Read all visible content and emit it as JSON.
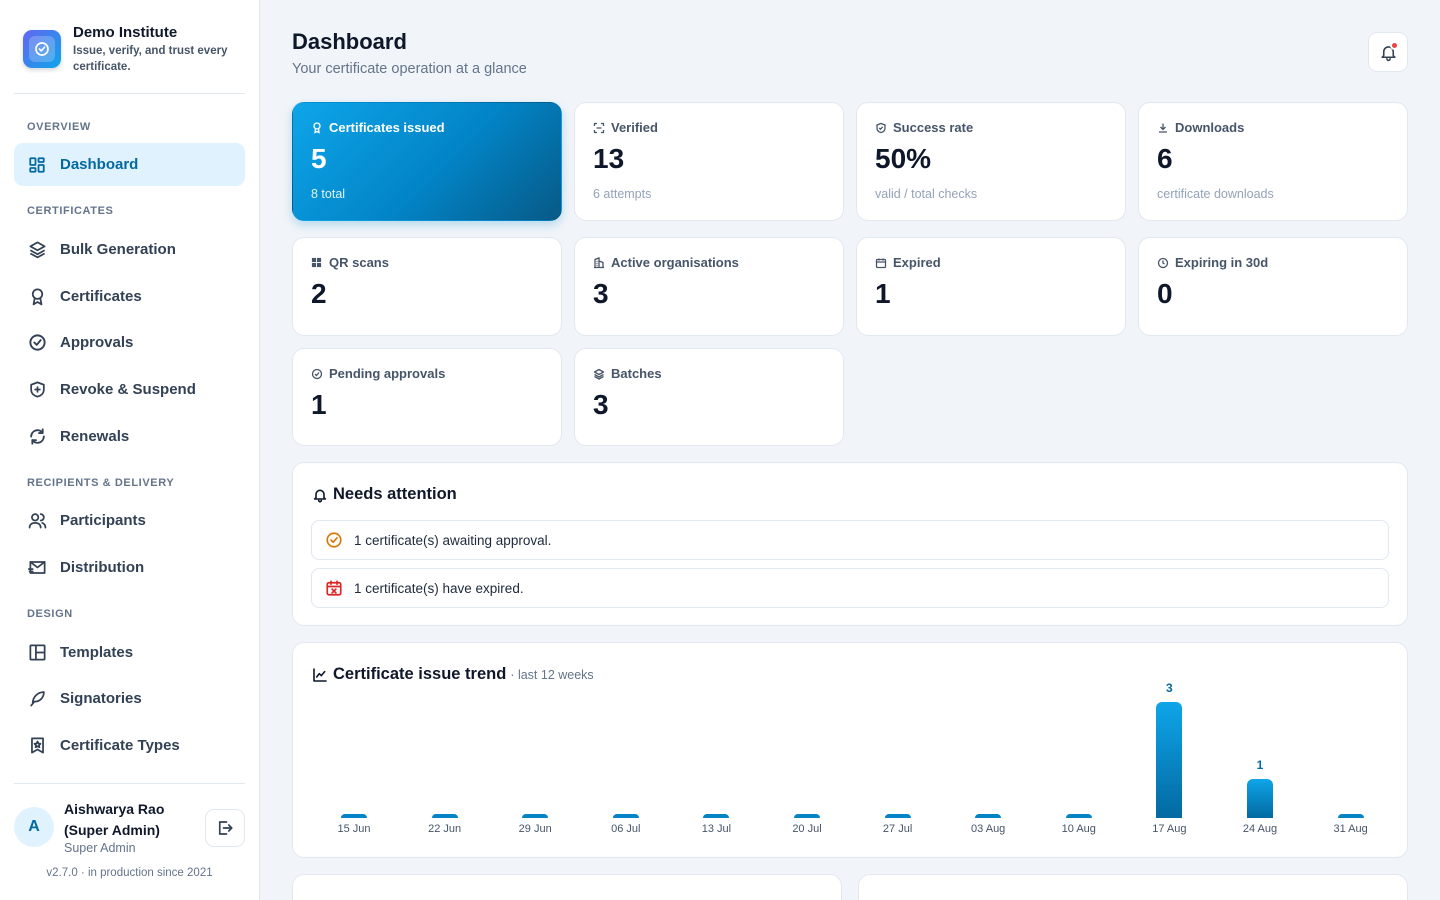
{
  "brand": {
    "name": "Demo Institute",
    "tagline": "Issue, verify, and trust every certificate."
  },
  "nav": {
    "sections": [
      "OVERVIEW",
      "CERTIFICATES",
      "RECIPIENTS & DELIVERY",
      "DESIGN"
    ],
    "items": [
      {
        "label": "Dashboard",
        "icon": "dashboard-grid-icon",
        "active": true
      },
      {
        "label": "Bulk Generation",
        "icon": "layers-icon"
      },
      {
        "label": "Certificates",
        "icon": "award-ribbon-icon"
      },
      {
        "label": "Approvals",
        "icon": "check-circle-icon"
      },
      {
        "label": "Revoke & Suspend",
        "icon": "shield-plus-icon"
      },
      {
        "label": "Renewals",
        "icon": "refresh-icon"
      },
      {
        "label": "Participants",
        "icon": "users-icon"
      },
      {
        "label": "Distribution",
        "icon": "send-mail-icon"
      },
      {
        "label": "Templates",
        "icon": "layout-template-icon"
      },
      {
        "label": "Signatories",
        "icon": "feather-pen-icon"
      },
      {
        "label": "Certificate Types",
        "icon": "bookmark-star-icon"
      }
    ]
  },
  "user": {
    "initial": "A",
    "name": "Aishwarya Rao (Super Admin)",
    "role": "Super Admin"
  },
  "version": "v2.7.0 · in production since 2021",
  "header": {
    "title": "Dashboard",
    "subtitle": "Your certificate operation at a glance"
  },
  "stats": [
    {
      "label": "Certificates issued",
      "value": "5",
      "sub": "8 total",
      "icon": "award-icon",
      "accent": "#0284c7"
    },
    {
      "label": "Verified",
      "value": "13",
      "sub": "6 attempts",
      "icon": "scan-icon"
    },
    {
      "label": "Success rate",
      "value": "50%",
      "sub": "valid / total checks",
      "icon": "shield-check-icon"
    },
    {
      "label": "Downloads",
      "value": "6",
      "sub": "certificate downloads",
      "icon": "download-icon"
    },
    {
      "label": "QR scans",
      "value": "2",
      "sub": "",
      "icon": "qr-icon"
    },
    {
      "label": "Active organisations",
      "value": "3",
      "sub": "",
      "icon": "building-icon"
    },
    {
      "label": "Expired",
      "value": "1",
      "sub": "",
      "icon": "calendar-icon"
    },
    {
      "label": "Expiring in 30d",
      "value": "0",
      "sub": "",
      "icon": "clock-icon"
    },
    {
      "label": "Pending approvals",
      "value": "1",
      "sub": "",
      "icon": "check-circle-icon"
    },
    {
      "label": "Batches",
      "value": "3",
      "sub": "",
      "icon": "layers-icon"
    }
  ],
  "attention": {
    "title": "Needs attention",
    "items": [
      {
        "text": "1 certificate(s) awaiting approval.",
        "icon": "pending-check-icon",
        "color": "#d97706"
      },
      {
        "text": "1 certificate(s) have expired.",
        "icon": "calendar-x-icon",
        "color": "#dc2626"
      }
    ]
  },
  "trend": {
    "title": "Certificate issue trend",
    "subtitle": "· last 12 weeks"
  },
  "chart_data": {
    "type": "bar",
    "title": "Certificate issue trend",
    "subtitle": "last 12 weeks",
    "categories": [
      "15 Jun",
      "22 Jun",
      "29 Jun",
      "06 Jul",
      "13 Jul",
      "20 Jul",
      "27 Jul",
      "03 Aug",
      "10 Aug",
      "17 Aug",
      "24 Aug",
      "31 Aug"
    ],
    "values": [
      0,
      0,
      0,
      0,
      0,
      0,
      0,
      0,
      0,
      3,
      1,
      0
    ],
    "ylim": [
      0,
      3
    ],
    "grid": false,
    "bar_color": "#0284c7"
  }
}
